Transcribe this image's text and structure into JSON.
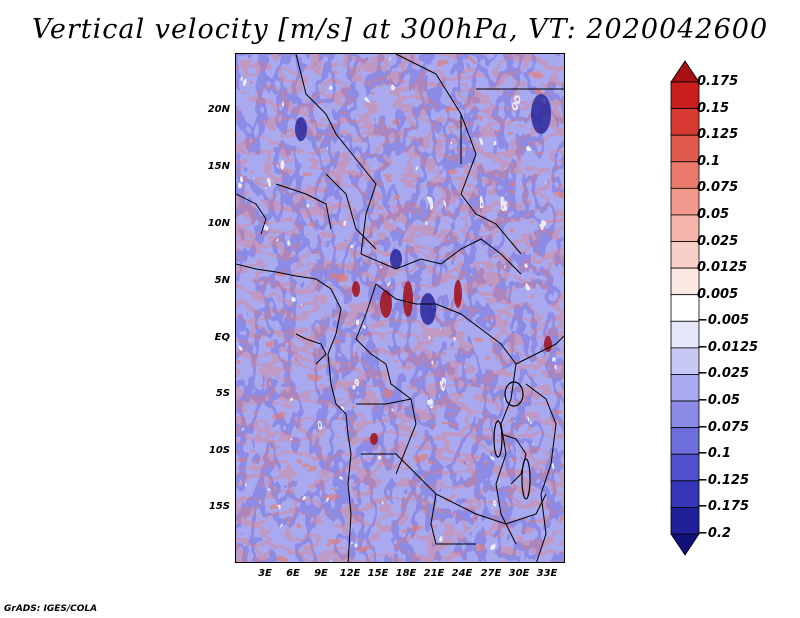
{
  "title": "Vertical velocity [m/s] at 300hPa, VT: 2020042600",
  "footer": "GrADS: IGES/COLA",
  "axes": {
    "lat_labels": [
      "20N",
      "15N",
      "10N",
      "5N",
      "EQ",
      "5S",
      "10S",
      "15S"
    ],
    "lon_labels": [
      "3E",
      "6E",
      "9E",
      "12E",
      "15E",
      "18E",
      "21E",
      "24E",
      "27E",
      "30E",
      "33E"
    ]
  },
  "colorbar": {
    "levels": [
      "0.175",
      "0.15",
      "0.125",
      "0.1",
      "0.075",
      "0.05",
      "0.025",
      "0.0125",
      "0.005",
      "−0.005",
      "−0.0125",
      "−0.025",
      "−0.05",
      "−0.075",
      "−0.1",
      "−0.125",
      "−0.175",
      "−0.2"
    ],
    "colors": [
      "#a50f15",
      "#c81d1d",
      "#d73a30",
      "#e15b4c",
      "#e9796b",
      "#f0998c",
      "#f5b5aa",
      "#f9d0c7",
      "#fde8e3",
      "#ffffff",
      "#e6e6fa",
      "#c8c8f5",
      "#a9a9ef",
      "#8c8ce6",
      "#6e6edc",
      "#5050cc",
      "#3535b5",
      "#20209a",
      "#10107a"
    ]
  },
  "field": {
    "variable": "Vertical velocity",
    "units": "m/s",
    "level": "300hPa",
    "valid_time": "2020042600"
  }
}
